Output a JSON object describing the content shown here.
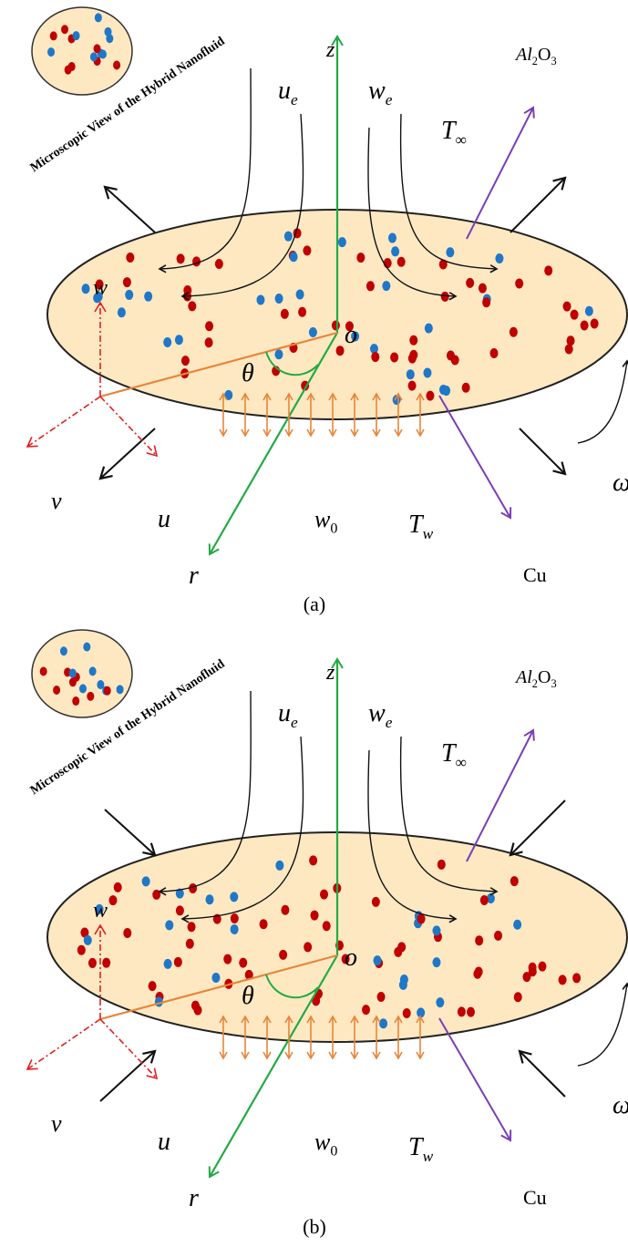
{
  "panels": [
    {
      "caption": "(a)",
      "microscopic_label": "Microscopic View of the Hybrid Nanofluid",
      "flow": "outward",
      "labels": [
        {
          "parts": [
            {
              "t": "z",
              "italic": true
            }
          ]
        },
        {
          "parts": [
            {
              "t": "u",
              "italic": true
            },
            {
              "t": "e",
              "italic": true,
              "sub": true
            }
          ]
        },
        {
          "parts": [
            {
              "t": "w",
              "italic": true
            },
            {
              "t": "e",
              "italic": true,
              "sub": true
            }
          ]
        },
        {
          "parts": [
            {
              "t": "T",
              "italic": true
            },
            {
              "t": "∞",
              "sub": true
            }
          ]
        },
        {
          "parts": [
            {
              "t": "Al",
              "italic": true
            },
            {
              "t": "2",
              "sub": true
            },
            {
              "t": "O"
            },
            {
              "t": "3",
              "sub": true
            }
          ]
        },
        {
          "parts": [
            {
              "t": "o",
              "italic": true
            }
          ]
        },
        {
          "parts": [
            {
              "t": "θ",
              "italic": true
            }
          ]
        },
        {
          "parts": [
            {
              "t": "w",
              "italic": true
            }
          ]
        },
        {
          "parts": [
            {
              "t": "v",
              "italic": true
            }
          ]
        },
        {
          "parts": [
            {
              "t": "u",
              "italic": true
            }
          ]
        },
        {
          "parts": [
            {
              "t": "w",
              "italic": true
            },
            {
              "t": "0",
              "sub": true
            }
          ]
        },
        {
          "parts": [
            {
              "t": "T",
              "italic": true
            },
            {
              "t": "w",
              "italic": true,
              "sub": true
            }
          ]
        },
        {
          "parts": [
            {
              "t": "Cu"
            }
          ]
        },
        {
          "parts": [
            {
              "t": "r",
              "italic": true
            }
          ]
        },
        {
          "parts": [
            {
              "t": "ω",
              "italic": true
            }
          ]
        }
      ]
    },
    {
      "caption": "(b)",
      "microscopic_label": "Microscopic View of the Hybrid Nanofluid",
      "flow": "inward",
      "labels": [
        {
          "parts": [
            {
              "t": "z",
              "italic": true
            }
          ]
        },
        {
          "parts": [
            {
              "t": "u",
              "italic": true
            },
            {
              "t": "e",
              "italic": true,
              "sub": true
            }
          ]
        },
        {
          "parts": [
            {
              "t": "w",
              "italic": true
            },
            {
              "t": "e",
              "italic": true,
              "sub": true
            }
          ]
        },
        {
          "parts": [
            {
              "t": "T",
              "italic": true
            },
            {
              "t": "∞",
              "sub": true
            }
          ]
        },
        {
          "parts": [
            {
              "t": "Al",
              "italic": true
            },
            {
              "t": "2",
              "sub": true
            },
            {
              "t": "O"
            },
            {
              "t": "3",
              "sub": true
            }
          ]
        },
        {
          "parts": [
            {
              "t": "o",
              "italic": true
            }
          ]
        },
        {
          "parts": [
            {
              "t": "θ",
              "italic": true
            }
          ]
        },
        {
          "parts": [
            {
              "t": "w",
              "italic": true
            }
          ]
        },
        {
          "parts": [
            {
              "t": "v",
              "italic": true
            }
          ]
        },
        {
          "parts": [
            {
              "t": "u",
              "italic": true
            }
          ]
        },
        {
          "parts": [
            {
              "t": "w",
              "italic": true
            },
            {
              "t": "0",
              "sub": true
            }
          ]
        },
        {
          "parts": [
            {
              "t": "T",
              "italic": true
            },
            {
              "t": "w",
              "italic": true,
              "sub": true
            }
          ]
        },
        {
          "parts": [
            {
              "t": "Cu"
            }
          ]
        },
        {
          "parts": [
            {
              "t": "r",
              "italic": true
            }
          ]
        },
        {
          "parts": [
            {
              "t": "ω",
              "italic": true
            }
          ]
        }
      ]
    }
  ]
}
